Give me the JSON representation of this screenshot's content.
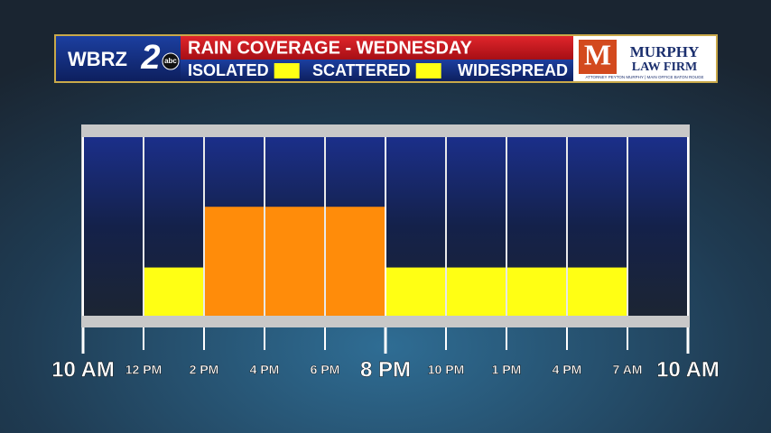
{
  "branding": {
    "station": "WBRZ",
    "channel": "2",
    "network": "abc",
    "sponsor_initial": "M",
    "sponsor_line1": "MURPHY",
    "sponsor_line2": "LAW FIRM",
    "sponsor_tagline": "ATTORNEY PEYTON MURPHY | MAIN OFFICE BATON ROUGE"
  },
  "chart_data": {
    "type": "bar",
    "title": "RAIN COVERAGE - WEDNESDAY",
    "legend": [
      {
        "name": "ISOLATED",
        "color": "#ffff14"
      },
      {
        "name": "SCATTERED",
        "color": "#ffff14"
      },
      {
        "name": "WIDESPREAD",
        "color": "#ff8c0a"
      }
    ],
    "bin_labels": [
      "10 AM",
      "12 PM",
      "2 PM",
      "4 PM",
      "6 PM",
      "8 PM",
      "10 PM",
      "1 PM",
      "4 PM",
      "7 AM",
      "10 AM"
    ],
    "values": [
      0,
      27,
      61,
      61,
      61,
      27,
      27,
      27,
      27,
      0
    ],
    "colors": [
      null,
      "#ffff14",
      "#ff8c0a",
      "#ff8c0a",
      "#ff8c0a",
      "#ffff14",
      "#ffff14",
      "#ffff14",
      "#ffff14",
      null
    ],
    "ylim": [
      0,
      100
    ]
  }
}
